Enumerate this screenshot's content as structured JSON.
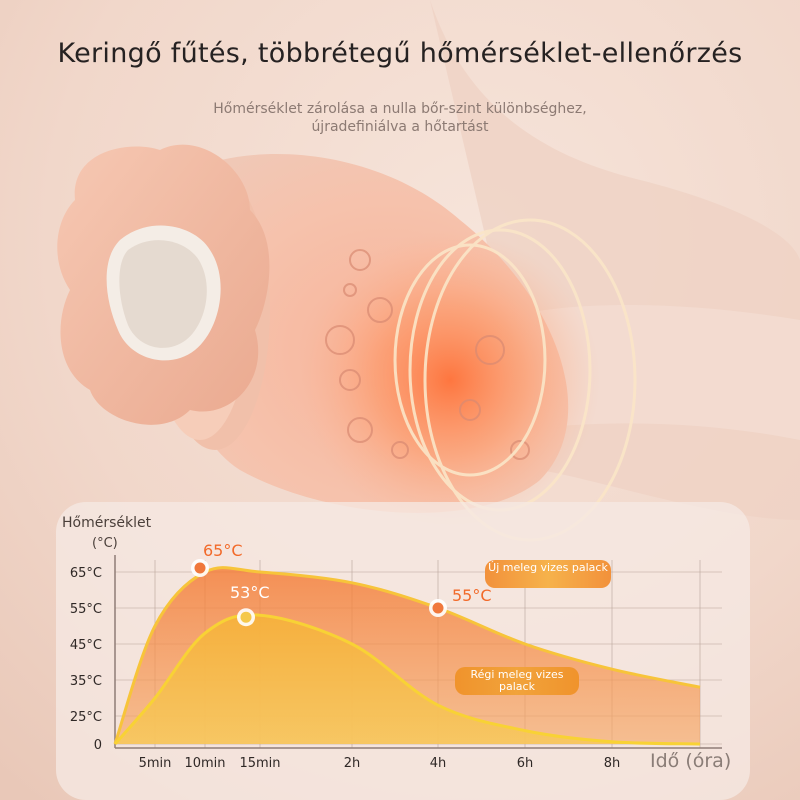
{
  "headline": "Keringő fűtés, többrétegű hőmérséklet-ellenőrzés",
  "subline": {
    "line1": "Hőmérséklet zárolása a nulla bőr-szint különbséghez,",
    "line2": "újradefiniálva a hőtartást"
  },
  "colors": {
    "new_fill": "#f47a33",
    "new_line": "#f7c43a",
    "old_fill": "#f6b23a",
    "old_line": "#f8d235",
    "marker": "#f0783c",
    "grid": "#b9a49a"
  },
  "legend": {
    "new": "Új meleg vizes palack",
    "old": "Régi meleg vizes palack"
  },
  "chart_data": {
    "type": "area",
    "ylabel_line1": "Hőmérséklet",
    "ylabel_line2": "(°C)",
    "xlabel": "Idő (óra)",
    "x_ticks": [
      "5min",
      "10min",
      "15min",
      "2h",
      "4h",
      "6h",
      "8h"
    ],
    "y_ticks": [
      "0",
      "25°C",
      "35°C",
      "45°C",
      "55°C",
      "65°C"
    ],
    "y_values": [
      0,
      25,
      35,
      45,
      55,
      65
    ],
    "series": [
      {
        "name": "Új meleg vizes palack",
        "points": [
          {
            "x": "0",
            "y": 0
          },
          {
            "x": "5min",
            "y": 50
          },
          {
            "x": "10min",
            "y": 65
          },
          {
            "x": "15min",
            "y": 65
          },
          {
            "x": "2h",
            "y": 62
          },
          {
            "x": "4h",
            "y": 55
          },
          {
            "x": "6h",
            "y": 45
          },
          {
            "x": "8h",
            "y": 38
          },
          {
            "x": "end",
            "y": 33
          }
        ],
        "peak_label": "65°C",
        "mark_label": "55°C"
      },
      {
        "name": "Régi meleg vizes palack",
        "points": [
          {
            "x": "0",
            "y": 0
          },
          {
            "x": "5min",
            "y": 30
          },
          {
            "x": "10min",
            "y": 48
          },
          {
            "x": "15min",
            "y": 53
          },
          {
            "x": "2h",
            "y": 45
          },
          {
            "x": "4h",
            "y": 28
          },
          {
            "x": "6h",
            "y": 12
          },
          {
            "x": "8h",
            "y": 2
          },
          {
            "x": "end",
            "y": 0
          }
        ],
        "peak_label": "53°C"
      }
    ]
  }
}
